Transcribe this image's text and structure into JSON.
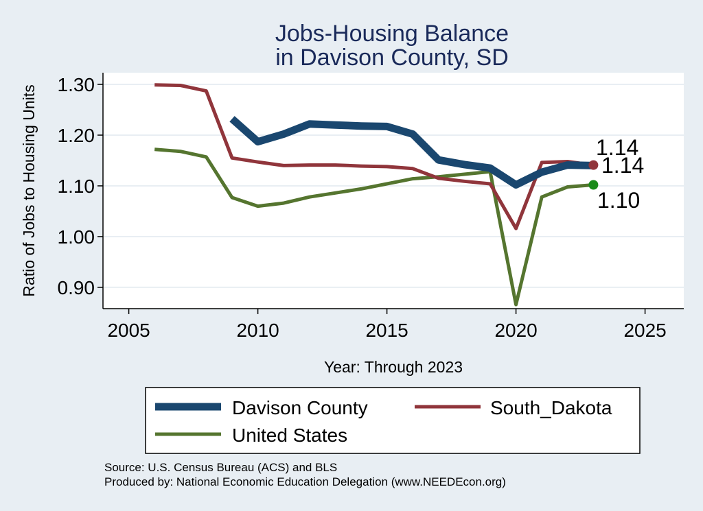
{
  "chart_data": {
    "type": "line",
    "title": [
      "Jobs-Housing Balance",
      "in Davison County, SD"
    ],
    "xlabel": "Year: Through 2023",
    "ylabel": "Ratio of Jobs to Housing Units",
    "xlim": [
      2004,
      2026.5
    ],
    "ylim": [
      0.858,
      1.323
    ],
    "x_ticks": [
      2005,
      2010,
      2015,
      2020,
      2025
    ],
    "y_ticks": [
      0.9,
      1.0,
      1.1,
      1.2,
      1.3
    ],
    "y_tick_labels": [
      "0.90",
      "1.00",
      "1.10",
      "1.20",
      "1.30"
    ],
    "grid": true,
    "legend_position": "bottom",
    "series": [
      {
        "name": "Davison County",
        "color": "#1a476f",
        "x": [
          2009,
          2010,
          2011,
          2012,
          2013,
          2014,
          2015,
          2016,
          2017,
          2018,
          2019,
          2020,
          2021,
          2022,
          2023
        ],
        "values": [
          1.232,
          1.187,
          1.202,
          1.222,
          1.22,
          1.218,
          1.217,
          1.202,
          1.151,
          1.142,
          1.135,
          1.102,
          1.127,
          1.141,
          1.14
        ],
        "end_label": "1.14"
      },
      {
        "name": "South_Dakota",
        "color": "#90353b",
        "x": [
          2006,
          2007,
          2008,
          2009,
          2010,
          2011,
          2012,
          2013,
          2014,
          2015,
          2016,
          2017,
          2018,
          2019,
          2020,
          2021,
          2022,
          2023
        ],
        "values": [
          1.299,
          1.298,
          1.287,
          1.155,
          1.147,
          1.14,
          1.141,
          1.141,
          1.139,
          1.138,
          1.134,
          1.115,
          1.109,
          1.104,
          1.016,
          1.146,
          1.148,
          1.141
        ],
        "end_label": "1.14"
      },
      {
        "name": "United States",
        "color": "#55752f",
        "x": [
          2006,
          2007,
          2008,
          2009,
          2010,
          2011,
          2012,
          2013,
          2014,
          2015,
          2016,
          2017,
          2018,
          2019,
          2020,
          2021,
          2022,
          2023
        ],
        "values": [
          1.172,
          1.168,
          1.157,
          1.077,
          1.06,
          1.066,
          1.078,
          1.086,
          1.094,
          1.104,
          1.114,
          1.118,
          1.123,
          1.128,
          0.866,
          1.078,
          1.098,
          1.102
        ],
        "end_label": "1.10"
      }
    ],
    "end_markers": [
      {
        "series": "South_Dakota",
        "color": "#90353b"
      },
      {
        "series": "United States",
        "color": "#1a8a1a"
      }
    ],
    "notes": [
      "Source: U.S. Census Bureau (ACS) and BLS",
      "Produced by: National Economic Education Delegation (www.NEEDEcon.org)"
    ]
  }
}
